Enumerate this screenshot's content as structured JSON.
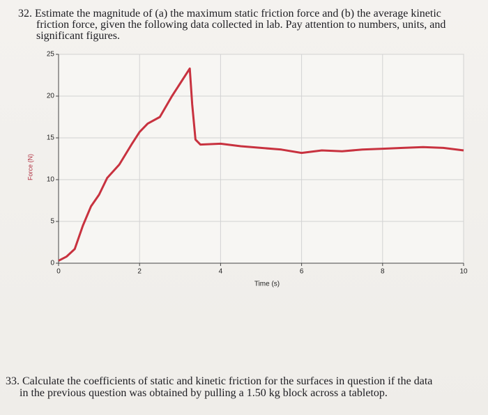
{
  "question_32": {
    "lines": [
      "32. Estimate the magnitude of (a) the maximum static friction force and (b) the average kinetic",
      "friction force, given the following data collected in lab. Pay attention to numbers, units, and",
      "significant figures."
    ]
  },
  "chart_data": {
    "type": "line",
    "x_label": "Time (s)",
    "y_label": "Force (N)",
    "x": [
      0,
      0.2,
      0.4,
      0.6,
      0.8,
      1.0,
      1.2,
      1.5,
      1.8,
      2.0,
      2.2,
      2.5,
      2.8,
      3.0,
      3.24,
      3.3,
      3.38,
      3.5,
      4.0,
      4.5,
      5.0,
      5.5,
      6.0,
      6.5,
      7.0,
      7.5,
      8.0,
      8.5,
      9.0,
      9.5,
      10.0
    ],
    "values": [
      0.3,
      0.8,
      1.7,
      4.5,
      6.8,
      8.2,
      10.2,
      11.8,
      14.2,
      15.7,
      16.7,
      17.5,
      20.0,
      21.5,
      23.3,
      19.0,
      14.8,
      14.2,
      14.3,
      14.0,
      13.8,
      13.6,
      13.2,
      13.5,
      13.4,
      13.6,
      13.7,
      13.8,
      13.9,
      13.8,
      13.5
    ],
    "color": "#c8323f",
    "xlim": [
      0,
      10
    ],
    "ylim": [
      0,
      25
    ],
    "xticks": [
      0,
      2,
      4,
      6,
      8,
      10
    ],
    "yticks": [
      0,
      5,
      10,
      15,
      20,
      25
    ],
    "grid": true
  },
  "question_33": {
    "lines": [
      "33. Calculate the coefficients of static and kinetic friction for the surfaces in question if the data",
      "in the previous question was obtained by pulling a 1.50 kg block across a tabletop."
    ]
  }
}
